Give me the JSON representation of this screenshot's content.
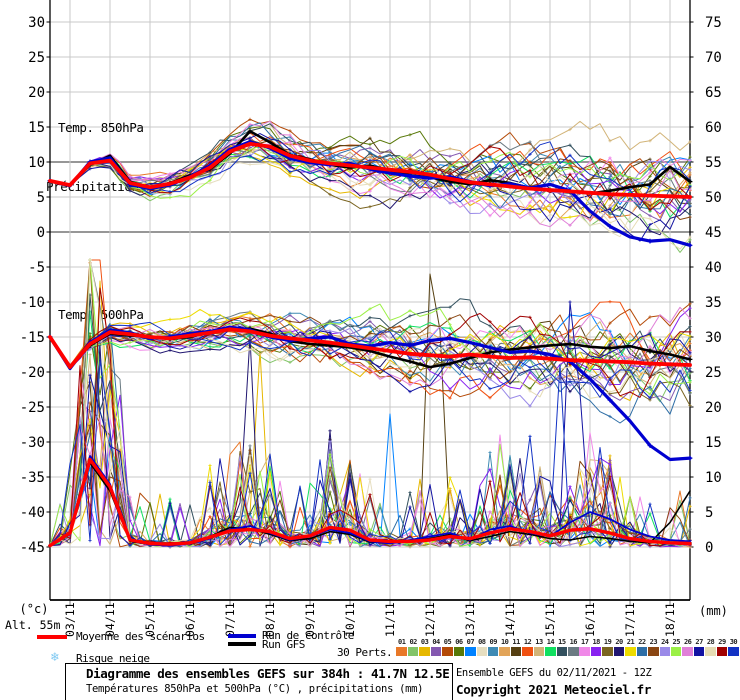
{
  "axes": {
    "unit_left": "(°c)",
    "alt_label": "Alt. 55m",
    "unit_right": "(mm)",
    "left_ticks": [
      30,
      25,
      20,
      15,
      10,
      5,
      0,
      -5,
      -10,
      -15,
      -20,
      -25,
      -30,
      -35,
      -40,
      -45
    ],
    "right_ticks": [
      75,
      70,
      65,
      60,
      55,
      50,
      45,
      40,
      35,
      30,
      25,
      20,
      15,
      10,
      5,
      0
    ],
    "x_tick_labels": [
      "03/11",
      "04/11",
      "05/11",
      "06/11",
      "07/11",
      "08/11",
      "09/11",
      "10/11",
      "11/11",
      "12/11",
      "13/11",
      "14/11",
      "15/11",
      "16/11",
      "17/11",
      "18/11"
    ]
  },
  "panel_labels": {
    "t850": "Temp. 850hPa",
    "t500": "Temp. 500hPa",
    "precip": "Précipitations"
  },
  "legend": {
    "mean_label": "Moyenne des scénarios",
    "control_label": "Run de contrôle",
    "gfs_label": "Run GFS",
    "perts_label": "30 Perts.",
    "snow_label": "Risque neige",
    "mean_color": "#FF0000",
    "control_color": "#0000D0",
    "gfs_color": "#000000",
    "snow_color": "#7FC9F2"
  },
  "footer": {
    "box_title": "Diagramme des ensembles GEFS sur 384h : 41.7N 12.5E",
    "box_subtitle": "Températures 850hPa et 500hPa (°C) , précipitations (mm)",
    "run_info": "Ensemble GEFS du 02/11/2021 - 12Z",
    "copyright": "Copyright 2021 Meteociel.fr"
  },
  "chart_data": {
    "type": "line",
    "title": "Diagramme des ensembles GEFS sur 384h : 41.7N 12.5E",
    "x_start": "02/11/2021 12Z",
    "x_hours_step": 12,
    "x_total_hours": 384,
    "ylim_left_c": [
      -45,
      30
    ],
    "ylim_right_mm": [
      0,
      75
    ],
    "grid": true,
    "series": {
      "t850_c": {
        "mean": [
          7.3,
          6.7,
          9.8,
          10.2,
          7.0,
          6.4,
          6.9,
          7.8,
          9.2,
          11.5,
          12.6,
          12.2,
          10.9,
          10.2,
          9.8,
          9.5,
          9.2,
          8.9,
          8.6,
          8.2,
          7.6,
          7.1,
          6.8,
          6.5,
          6.2,
          6.0,
          5.8,
          5.6,
          5.4,
          5.3,
          5.2,
          5.1,
          5.0
        ],
        "control": [
          7.3,
          6.6,
          10.0,
          10.6,
          6.8,
          6.2,
          6.7,
          7.9,
          9.5,
          11.8,
          12.9,
          12.0,
          10.5,
          9.9,
          9.6,
          9.8,
          9.0,
          8.4,
          8.0,
          7.7,
          7.9,
          7.2,
          6.6,
          6.9,
          6.3,
          6.8,
          5.9,
          3.0,
          0.8,
          -0.7,
          -1.3,
          -1.1,
          -1.9
        ],
        "gfs": [
          7.3,
          6.7,
          9.6,
          10.9,
          7.2,
          6.3,
          7.0,
          8.1,
          9.0,
          11.2,
          14.4,
          12.8,
          11.0,
          10.4,
          9.6,
          9.2,
          9.5,
          8.8,
          8.1,
          7.8,
          7.2,
          6.8,
          7.4,
          7.0,
          6.3,
          6.0,
          5.8,
          5.5,
          5.9,
          6.4,
          6.8,
          9.3,
          7.2
        ]
      },
      "t500_c": {
        "mean": [
          -15.0,
          -19.3,
          -16.0,
          -14.3,
          -14.6,
          -15.0,
          -15.2,
          -14.8,
          -14.4,
          -13.9,
          -14.2,
          -14.8,
          -15.2,
          -15.5,
          -15.8,
          -16.2,
          -16.6,
          -17.0,
          -17.4,
          -17.6,
          -17.8,
          -17.5,
          -17.8,
          -18.0,
          -17.9,
          -18.1,
          -18.3,
          -18.4,
          -18.5,
          -18.6,
          -18.8,
          -18.9,
          -19.0
        ],
        "control": [
          -15.0,
          -19.5,
          -15.8,
          -14.0,
          -14.4,
          -15.2,
          -15.0,
          -14.5,
          -14.2,
          -13.6,
          -14.0,
          -15.0,
          -15.5,
          -15.2,
          -15.0,
          -16.0,
          -16.3,
          -15.8,
          -16.2,
          -15.5,
          -15.2,
          -15.8,
          -16.5,
          -17.2,
          -17.0,
          -17.5,
          -18.5,
          -21.0,
          -24.0,
          -27.0,
          -30.5,
          -32.5,
          -32.3
        ],
        "gfs": [
          -15.0,
          -19.2,
          -16.2,
          -14.5,
          -14.8,
          -14.9,
          -15.3,
          -15.0,
          -14.3,
          -14.0,
          -13.8,
          -14.5,
          -15.6,
          -16.0,
          -16.2,
          -16.5,
          -17.0,
          -17.8,
          -18.5,
          -19.3,
          -18.8,
          -18.0,
          -17.2,
          -16.8,
          -16.5,
          -16.2,
          -16.0,
          -16.4,
          -16.6,
          -16.3,
          -17.0,
          -17.5,
          -18.2
        ]
      },
      "precip_mm": {
        "mean": [
          0.2,
          2.0,
          12.5,
          8.6,
          1.0,
          0.5,
          0.4,
          0.6,
          1.4,
          2.3,
          2.5,
          2.2,
          1.2,
          1.6,
          2.8,
          2.4,
          1.0,
          0.8,
          0.8,
          1.0,
          1.5,
          1.2,
          2.0,
          2.6,
          2.2,
          1.6,
          2.4,
          2.6,
          2.0,
          1.2,
          0.8,
          0.6,
          0.5
        ],
        "control": [
          0.2,
          1.8,
          13.0,
          9.0,
          1.0,
          0.3,
          0.2,
          0.5,
          1.2,
          2.5,
          3.0,
          2.0,
          1.0,
          1.5,
          2.5,
          2.0,
          0.8,
          0.5,
          1.0,
          1.5,
          2.0,
          1.0,
          2.5,
          3.0,
          2.0,
          1.5,
          3.5,
          5.0,
          4.0,
          2.5,
          1.5,
          1.0,
          0.8
        ],
        "gfs": [
          0.2,
          2.2,
          12.0,
          8.0,
          0.8,
          0.4,
          0.3,
          0.6,
          1.5,
          2.8,
          2.6,
          1.8,
          0.9,
          1.2,
          2.2,
          1.8,
          0.7,
          0.6,
          0.9,
          1.2,
          1.8,
          0.9,
          1.5,
          2.2,
          1.8,
          1.2,
          1.0,
          1.5,
          1.2,
          0.8,
          0.6,
          3.5,
          8.0
        ]
      }
    },
    "ensemble": {
      "count": 30,
      "colors": [
        "#E87828",
        "#82C468",
        "#E6B800",
        "#8458B0",
        "#B44A08",
        "#587808",
        "#0082FF",
        "#E6DEC0",
        "#3E8AB4",
        "#E2A458",
        "#564012",
        "#F05010",
        "#D2B478",
        "#10E060",
        "#32505E",
        "#6A7A82",
        "#F088E8",
        "#8822F0",
        "#7A6420",
        "#201670",
        "#EEDC00",
        "#2E6EA6",
        "#8A4612",
        "#9A8AE8",
        "#9BF046",
        "#E080D8",
        "#1212A2",
        "#E6DCB4",
        "#A00000",
        "#1232C4"
      ],
      "spread_end_t850_c": 7,
      "spread_end_t500_c": 9,
      "notable_spikes_mm": [
        {
          "member": 11,
          "t_hours": 228,
          "mm": 39
        },
        {
          "member": 11,
          "t_hours": 234,
          "mm": 31
        },
        {
          "member": 27,
          "t_hours": 312,
          "mm": 35
        },
        {
          "member": 27,
          "t_hours": 318,
          "mm": 22
        },
        {
          "member": 30,
          "t_hours": 306,
          "mm": 26
        },
        {
          "member": 7,
          "t_hours": 204,
          "mm": 19
        },
        {
          "member": 20,
          "t_hours": 120,
          "mm": 30
        },
        {
          "member": 3,
          "t_hours": 30,
          "mm": 38
        },
        {
          "member": 3,
          "t_hours": 126,
          "mm": 28
        },
        {
          "member": 15,
          "t_hours": 24,
          "mm": 36
        },
        {
          "member": 17,
          "t_hours": 270,
          "mm": 16
        }
      ]
    }
  }
}
